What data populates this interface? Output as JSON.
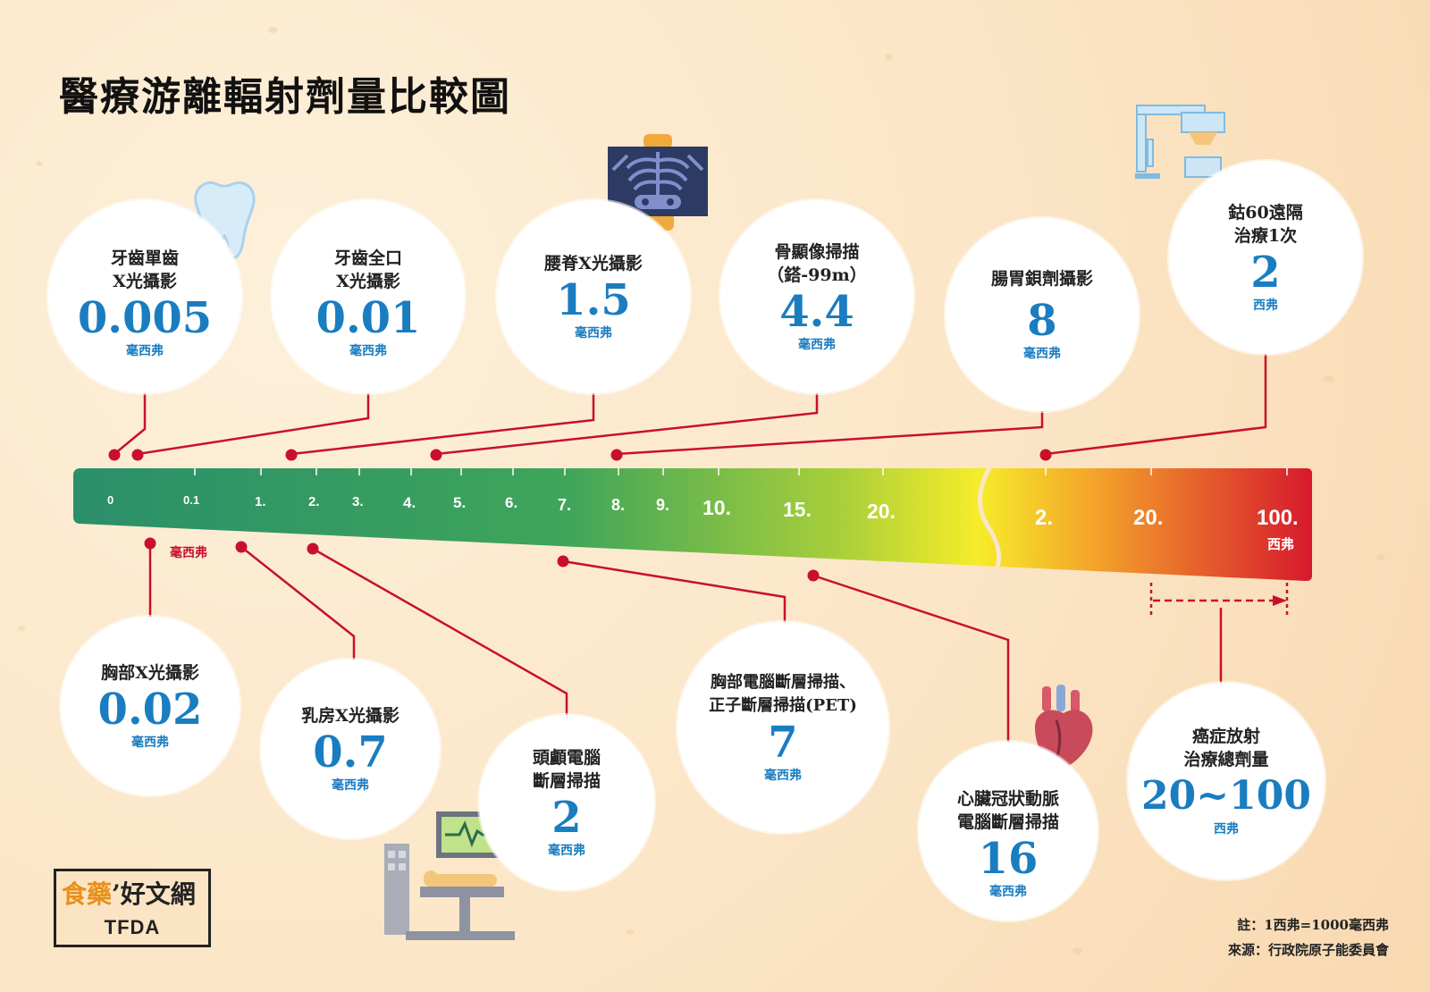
{
  "title": "醫療游離輻射劑量比較圖",
  "top_items": [
    {
      "label": "牙齒單齒\nX光攝影",
      "value": "0.005",
      "unit": "毫西弗"
    },
    {
      "label": "牙齒全口\nX光攝影",
      "value": "0.01",
      "unit": "毫西弗"
    },
    {
      "label": "腰脊X光攝影",
      "value": "1.5",
      "unit": "毫西弗"
    },
    {
      "label": "骨顯像掃描\n（鎝-99m）",
      "value": "4.4",
      "unit": "毫西弗"
    },
    {
      "label": "腸胃鋇劑攝影",
      "value": "8",
      "unit": "毫西弗"
    },
    {
      "label": "鈷60遠隔\n治療1次",
      "value": "2",
      "unit": "西弗"
    }
  ],
  "bottom_items": [
    {
      "label": "胸部X光攝影",
      "value": "0.02",
      "unit": "毫西弗"
    },
    {
      "label": "乳房X光攝影",
      "value": "0.7",
      "unit": "毫西弗"
    },
    {
      "label": "頭顱電腦\n斷層掃描",
      "value": "2",
      "unit": "毫西弗"
    },
    {
      "label": "胸部電腦斷層掃描、\n正子斷層掃描(PET)",
      "value": "7",
      "unit": "毫西弗"
    },
    {
      "label": "心臟冠狀動脈\n電腦斷層掃描",
      "value": "16",
      "unit": "毫西弗"
    },
    {
      "label": "癌症放射\n治療總劑量",
      "value": "20~100",
      "unit": "西弗"
    }
  ],
  "scale": {
    "msv_ticks": [
      "0",
      "0.1",
      "1.",
      "2.",
      "3.",
      "4.",
      "5.",
      "6.",
      "7.",
      "8.",
      "9.",
      "10.",
      "15.",
      "20."
    ],
    "sv_ticks": [
      "2.",
      "20.",
      "100."
    ],
    "msv_unit": "毫西弗",
    "sv_unit": "西弗",
    "colors": [
      "#2a8f6a",
      "#8cc43f",
      "#f3ea2a",
      "#f28c2a",
      "#d7192d"
    ]
  },
  "notes": {
    "conversion": "註：1西弗=1000毫西弗",
    "source": "來源：行政院原子能委員會"
  },
  "logo": {
    "main_a": "食藥",
    "main_b": "’好文網",
    "sub": "TFDA"
  },
  "icons": [
    "tooth-icon",
    "spine-xray-icon",
    "radiotherapy-machine-icon",
    "heart-icon",
    "ct-scanner-icon"
  ]
}
